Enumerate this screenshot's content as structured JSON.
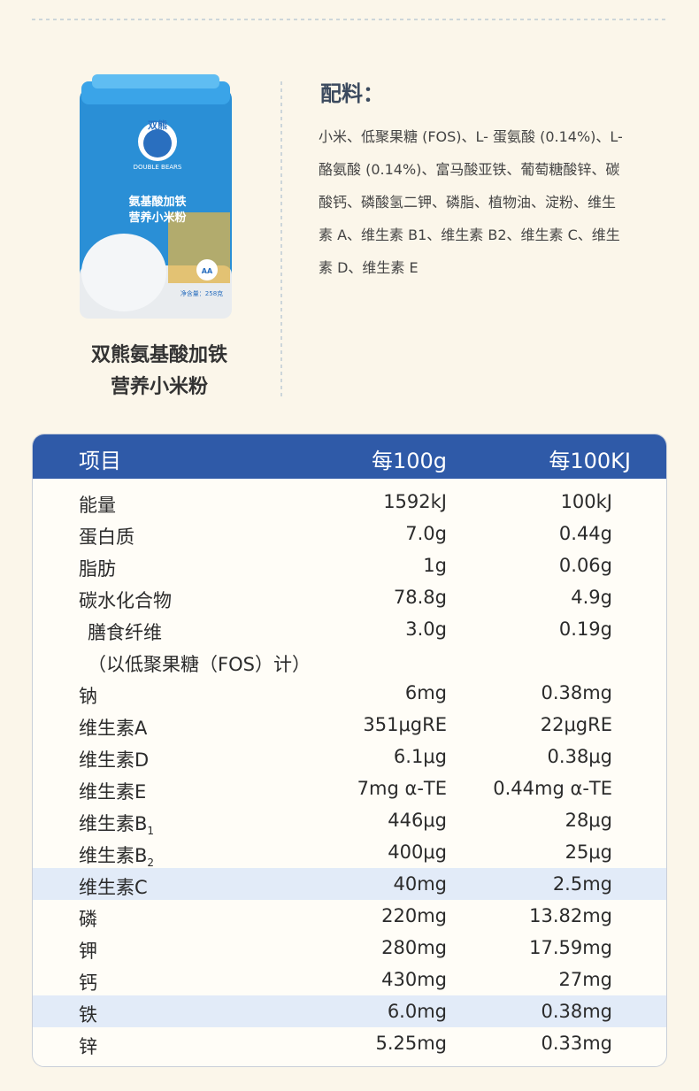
{
  "product": {
    "can": {
      "brand": "双熊",
      "brand_en": "DOUBLE BEARS",
      "line1": "氨基酸加铁",
      "line2": "营养小米粉",
      "badge": "AA",
      "weight": "净含量：258克"
    },
    "name_lines": [
      "双熊氨基酸加铁",
      "营养小米粉"
    ]
  },
  "ingredients": {
    "title": "配料：",
    "lines": [
      "小米、低聚果糖 (FOS)、L- 蛋氨酸 (0.14%)、L-",
      "酪氨酸 (0.14%)、富马酸亚铁、葡萄糖酸锌、碳",
      "酸钙、磷酸氢二钾、磷脂、植物油、淀粉、维生",
      "素 A、维生素 B1、维生素 B2、维生素 C、维生",
      "素 D、维生素 E"
    ]
  },
  "table": {
    "headers": [
      "项目",
      "每100g",
      "每100KJ"
    ],
    "rows": [
      {
        "name": "能量",
        "per100g": "1592kJ",
        "per100kj": "100kJ"
      },
      {
        "name": "蛋白质",
        "per100g": "7.0g",
        "per100kj": "0.44g"
      },
      {
        "name": "脂肪",
        "per100g": "1g",
        "per100kj": "0.06g"
      },
      {
        "name": "碳水化合物",
        "per100g": "78.8g",
        "per100kj": "4.9g"
      },
      {
        "name": "膳食纤维",
        "per100g": "3.0g",
        "per100kj": "0.19g",
        "note": "（以低聚果糖（FOS）计）"
      },
      {
        "name": "钠",
        "per100g": "6mg",
        "per100kj": "0.38mg"
      },
      {
        "name": "维生素A",
        "per100g": "351μgRE",
        "per100kj": "22μgRE"
      },
      {
        "name": "维生素D",
        "per100g": "6.1μg",
        "per100kj": "0.38μg"
      },
      {
        "name": "维生素E",
        "per100g": "7mg α-TE",
        "per100kj": "0.44mg α-TE"
      },
      {
        "name": "维生素B",
        "sub": "1",
        "per100g": "446μg",
        "per100kj": "28μg"
      },
      {
        "name": "维生素B",
        "sub": "2",
        "per100g": "400μg",
        "per100kj": "25μg"
      },
      {
        "name": "维生素C",
        "per100g": "40mg",
        "per100kj": "2.5mg",
        "highlight": true
      },
      {
        "name": "磷",
        "per100g": "220mg",
        "per100kj": "13.82mg"
      },
      {
        "name": "钾",
        "per100g": "280mg",
        "per100kj": "17.59mg"
      },
      {
        "name": "钙",
        "per100g": "430mg",
        "per100kj": "27mg"
      },
      {
        "name": "铁",
        "per100g": "6.0mg",
        "per100kj": "0.38mg",
        "highlight": true
      },
      {
        "name": "锌",
        "per100g": "5.25mg",
        "per100kj": "0.33mg"
      }
    ]
  }
}
